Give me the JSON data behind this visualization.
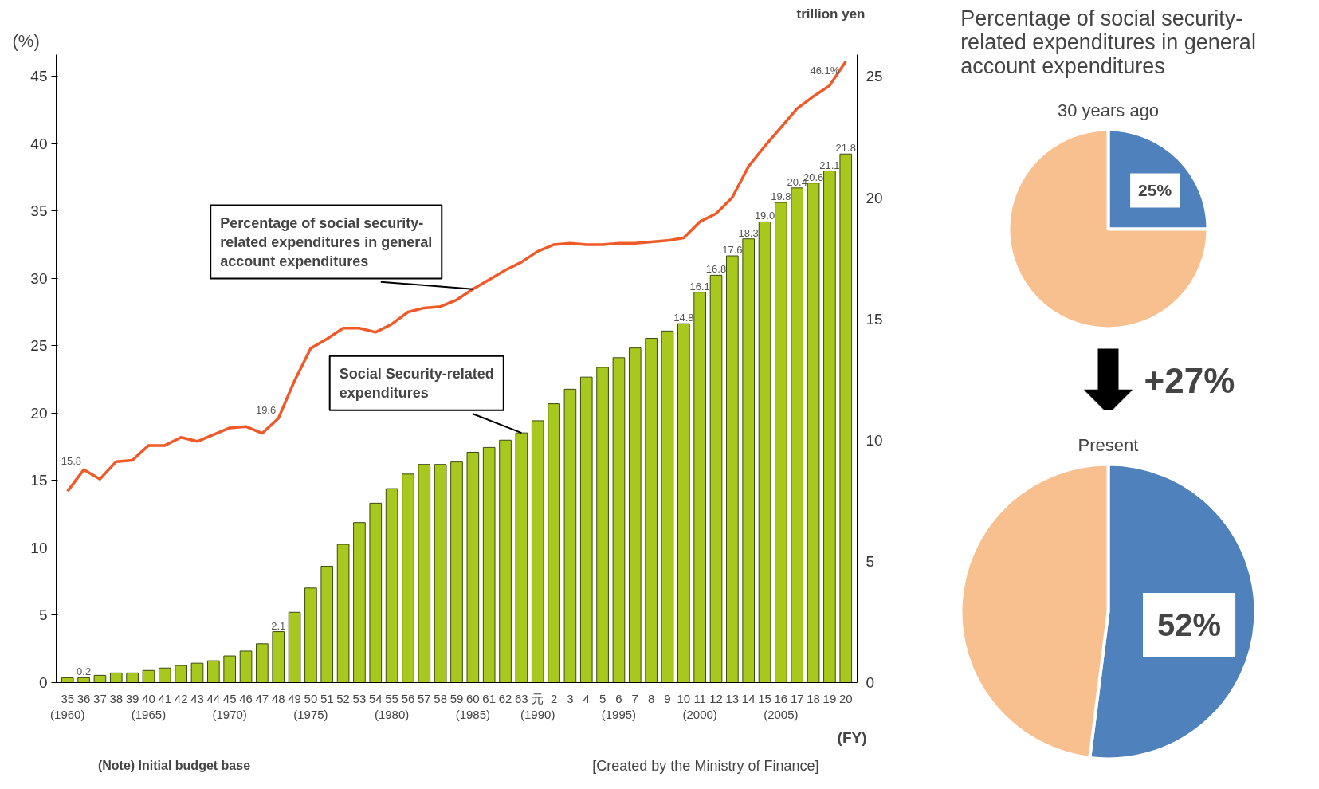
{
  "chart_data": [
    {
      "type": "bar",
      "categories": [
        "35\n(1960)",
        "36",
        "37",
        "38",
        "39",
        "40\n(1965)",
        "41",
        "42",
        "43",
        "44",
        "45\n(1970)",
        "46",
        "47",
        "48",
        "49",
        "50\n(1975)",
        "51",
        "52",
        "53",
        "54",
        "55\n(1980)",
        "56",
        "57",
        "58",
        "59",
        "60\n(1985)",
        "61",
        "62",
        "63",
        "元\n(1990)",
        "2",
        "3",
        "4",
        "5",
        "6\n(1995)",
        "7",
        "8",
        "9",
        "10",
        "11\n(2000)",
        "12",
        "13",
        "14",
        "15",
        "16\n(2005)",
        "17",
        "18",
        "19",
        "20"
      ],
      "series": [
        {
          "type": "bar",
          "axis": "y2",
          "name": "Social Security-related expenditures",
          "color": "#a8c81e",
          "values": [
            0.2,
            0.2,
            0.3,
            0.4,
            0.4,
            0.5,
            0.6,
            0.7,
            0.8,
            0.9,
            1.1,
            1.3,
            1.6,
            2.1,
            2.9,
            3.9,
            4.8,
            5.7,
            6.6,
            7.4,
            8.0,
            8.6,
            9.0,
            9.0,
            9.1,
            9.5,
            9.7,
            10.0,
            10.3,
            10.8,
            11.5,
            12.1,
            12.6,
            13.0,
            13.4,
            13.8,
            14.2,
            14.5,
            14.8,
            16.1,
            16.8,
            17.6,
            18.3,
            19.0,
            19.8,
            20.4,
            20.6,
            21.1,
            21.8
          ],
          "value_labels": [
            null,
            "0.2",
            null,
            null,
            null,
            null,
            null,
            null,
            null,
            null,
            null,
            null,
            null,
            "2.1",
            null,
            null,
            null,
            null,
            null,
            null,
            null,
            null,
            null,
            null,
            null,
            null,
            null,
            null,
            null,
            null,
            null,
            null,
            null,
            null,
            null,
            null,
            null,
            null,
            "14.8",
            "16.1",
            "16.8",
            "17.6",
            "18.3",
            "19.0",
            "19.8",
            "20.4",
            "20.6",
            "21.1",
            "21.8"
          ]
        },
        {
          "type": "line",
          "name": "Percentage of social security-related expenditures in general account expenditures",
          "color": "#f05a28",
          "values": [
            14.2,
            15.8,
            15.1,
            16.4,
            16.5,
            17.6,
            17.6,
            18.2,
            17.9,
            18.4,
            18.9,
            19.0,
            18.5,
            19.6,
            22.4,
            24.8,
            25.5,
            26.3,
            26.3,
            26.0,
            26.6,
            27.5,
            27.8,
            27.9,
            28.4,
            29.2,
            29.9,
            30.6,
            31.2,
            32.0,
            32.5,
            32.6,
            32.5,
            32.5,
            32.6,
            32.6,
            32.7,
            32.8,
            33.0,
            34.2,
            34.8,
            36.0,
            38.3,
            39.8,
            41.2,
            42.6,
            43.5,
            44.3,
            46.1
          ],
          "value_labels": [
            null,
            "15.8",
            null,
            null,
            null,
            null,
            null,
            null,
            null,
            null,
            null,
            null,
            null,
            "19.6",
            null,
            null,
            null,
            null,
            null,
            null,
            null,
            null,
            null,
            null,
            null,
            null,
            null,
            null,
            null,
            null,
            null,
            null,
            null,
            null,
            null,
            null,
            null,
            null,
            null,
            null,
            null,
            null,
            null,
            null,
            null,
            null,
            null,
            null,
            "46.1%"
          ]
        }
      ],
      "ylabel": "(%)",
      "y2label": "trillion yen",
      "xlabel": "(FY)",
      "ylim": [
        0,
        46.6
      ],
      "yticks": [
        0,
        5,
        10,
        15,
        20,
        25,
        30,
        35,
        40,
        45
      ],
      "y2lim": [
        0,
        25.9
      ],
      "y2ticks": [
        0,
        5,
        10,
        15,
        20,
        25
      ],
      "grid": false,
      "legend": false,
      "annotations": [
        "(Note) Initial budget base",
        "[Created by the Ministry of Finance]"
      ]
    },
    {
      "type": "pie",
      "title": "Percentage of social security-related expenditures in general account expenditures",
      "subtitle": "30 years ago",
      "categories": [
        null,
        null
      ],
      "values": [
        25,
        75
      ],
      "colors": [
        "#4f81bd",
        "#f8bf8f"
      ],
      "value_labels": [
        "25%",
        null
      ]
    },
    {
      "type": "pie",
      "subtitle": "Present",
      "categories": [
        null,
        null
      ],
      "values": [
        52,
        48
      ],
      "colors": [
        "#4f81bd",
        "#f8bf8f"
      ],
      "value_labels": [
        "52%",
        null
      ],
      "annotations": [
        "+27%"
      ]
    }
  ]
}
